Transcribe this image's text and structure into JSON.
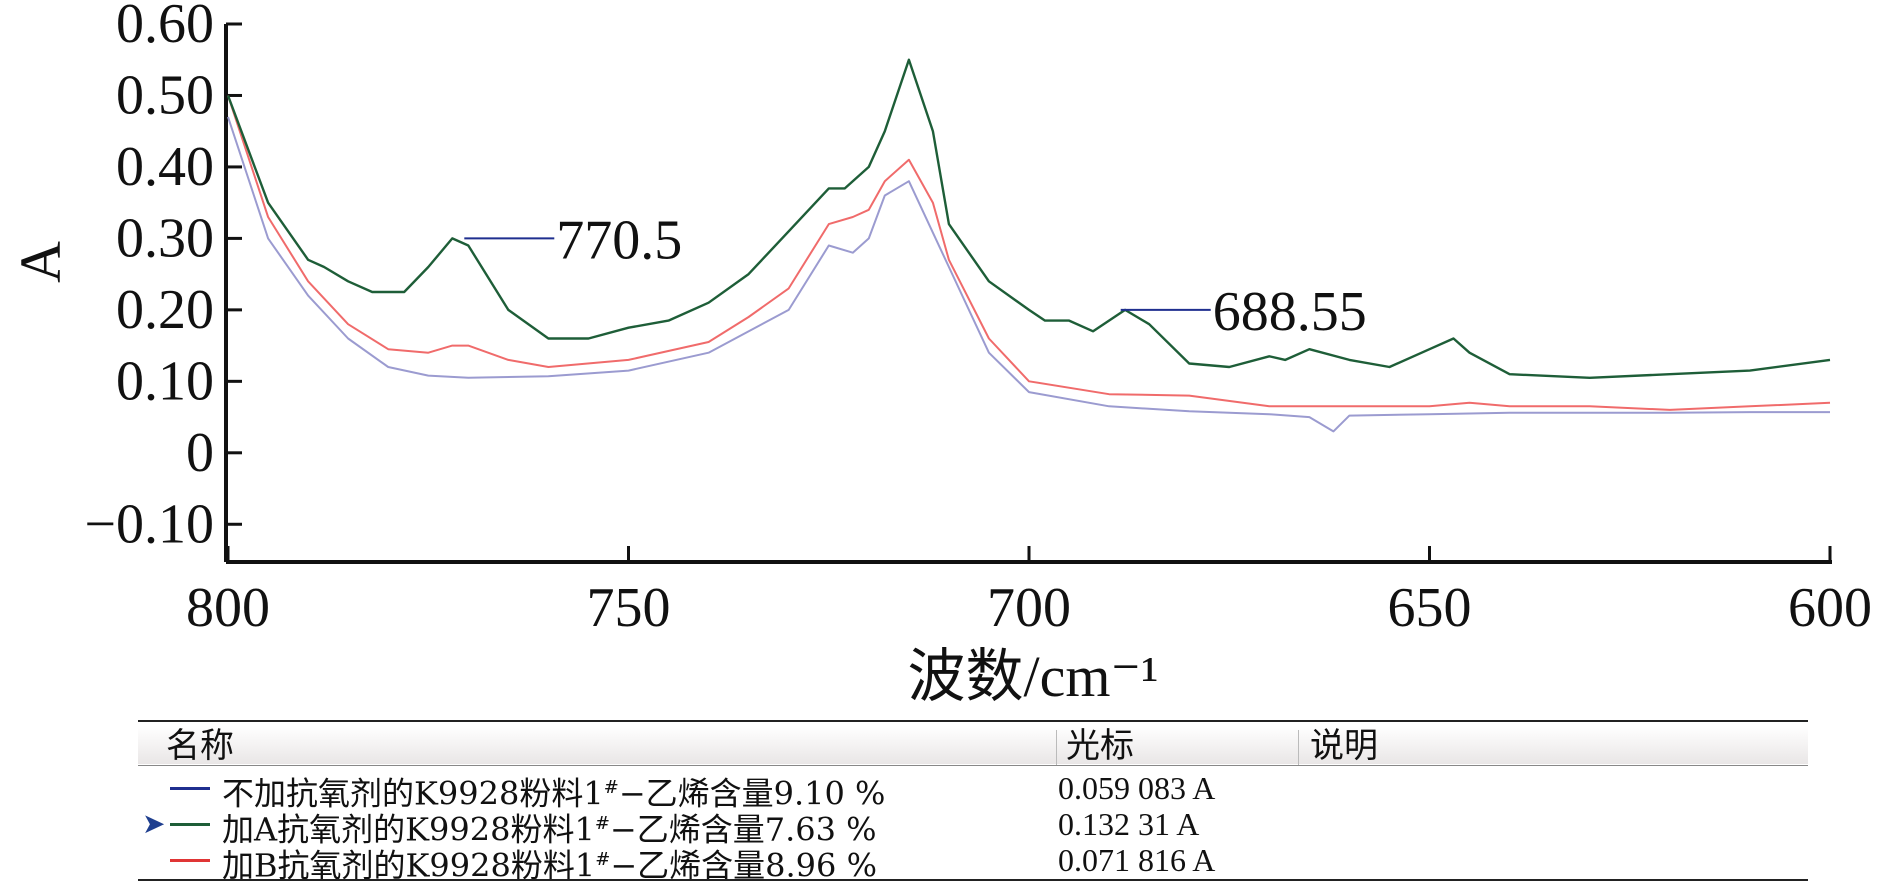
{
  "chart_data": {
    "type": "line",
    "xlabel": "波数/cm⁻¹",
    "ylabel": "A",
    "xlim": [
      800,
      600
    ],
    "ylim": [
      -0.15,
      0.6
    ],
    "x_reversed": true,
    "x_ticks": [
      "800",
      "750",
      "700",
      "650",
      "600"
    ],
    "y_ticks": [
      "0.60",
      "0.50",
      "0.40",
      "0.30",
      "0.20",
      "0.10",
      "0",
      "−0.10"
    ],
    "grid": false,
    "series": [
      {
        "name": "不加抗氧剂的K9928粉料1#−乙烯含量9.10 %",
        "color": "#9b9bd0",
        "x": [
          800,
          795,
          790,
          785,
          780,
          775,
          770,
          760,
          750,
          740,
          730,
          725,
          722,
          720,
          718,
          715,
          710,
          705,
          700,
          690,
          680,
          670,
          665,
          662,
          660,
          650,
          640,
          630,
          620,
          610,
          600
        ],
        "y": [
          0.47,
          0.3,
          0.22,
          0.16,
          0.12,
          0.108,
          0.105,
          0.107,
          0.115,
          0.14,
          0.2,
          0.29,
          0.28,
          0.3,
          0.36,
          0.38,
          0.26,
          0.14,
          0.085,
          0.065,
          0.058,
          0.054,
          0.05,
          0.03,
          0.052,
          0.054,
          0.056,
          0.056,
          0.056,
          0.057,
          0.057
        ]
      },
      {
        "name": "加A抗氧剂的K9928粉料1#−乙烯含量7.63 %",
        "color": "#1e5e38",
        "x": [
          800,
          795,
          790,
          788,
          785,
          782,
          778,
          775,
          772,
          770,
          765,
          760,
          755,
          750,
          745,
          740,
          735,
          730,
          725,
          723,
          720,
          718,
          715,
          712,
          710,
          705,
          700,
          698,
          695,
          692,
          688,
          685,
          680,
          675,
          670,
          668,
          665,
          660,
          655,
          650,
          647,
          645,
          640,
          630,
          620,
          610,
          600
        ],
        "y": [
          0.5,
          0.35,
          0.27,
          0.26,
          0.24,
          0.225,
          0.225,
          0.26,
          0.3,
          0.29,
          0.2,
          0.16,
          0.16,
          0.175,
          0.185,
          0.21,
          0.25,
          0.31,
          0.37,
          0.37,
          0.4,
          0.45,
          0.55,
          0.45,
          0.32,
          0.24,
          0.2,
          0.185,
          0.185,
          0.17,
          0.2,
          0.18,
          0.125,
          0.12,
          0.135,
          0.13,
          0.145,
          0.13,
          0.12,
          0.145,
          0.16,
          0.14,
          0.11,
          0.105,
          0.11,
          0.115,
          0.13
        ]
      },
      {
        "name": "加B抗氧剂的K9928粉料1#−乙烯含量8.96 %",
        "color": "#f06b6b",
        "x": [
          800,
          795,
          790,
          785,
          780,
          775,
          772,
          770,
          765,
          760,
          750,
          740,
          735,
          730,
          725,
          722,
          720,
          718,
          715,
          712,
          710,
          705,
          700,
          690,
          680,
          670,
          665,
          660,
          650,
          645,
          640,
          630,
          620,
          610,
          600
        ],
        "y": [
          0.5,
          0.33,
          0.24,
          0.18,
          0.145,
          0.14,
          0.15,
          0.15,
          0.13,
          0.12,
          0.13,
          0.155,
          0.19,
          0.23,
          0.32,
          0.33,
          0.34,
          0.38,
          0.41,
          0.35,
          0.27,
          0.16,
          0.1,
          0.082,
          0.08,
          0.065,
          0.065,
          0.065,
          0.065,
          0.07,
          0.065,
          0.065,
          0.06,
          0.065,
          0.07
        ]
      }
    ],
    "annotations": [
      {
        "label": "770.5",
        "x": 770.5,
        "y": 0.3
      },
      {
        "label": "688.55",
        "x": 688.55,
        "y": 0.2
      }
    ]
  },
  "legend_table": {
    "headers": {
      "name": "名称",
      "cursor": "光标",
      "note": "说明"
    },
    "rows": [
      {
        "name_main": "不加抗氧剂的K9928粉料1",
        "name_sup": "#",
        "name_tail": "−乙烯含量9.10 %",
        "cursor_value": "0.059 083 A",
        "color": "#1f2f8f",
        "selected": false
      },
      {
        "name_main": "加A抗氧剂的K9928粉料1",
        "name_sup": "#",
        "name_tail": "−乙烯含量7.63 %",
        "cursor_value": "0.132 31 A",
        "color": "#1e5e38",
        "selected": true
      },
      {
        "name_main": "加B抗氧剂的K9928粉料1",
        "name_sup": "#",
        "name_tail": "−乙烯含量8.96 %",
        "cursor_value": "0.071 816 A",
        "color": "#e03535",
        "selected": false
      }
    ]
  }
}
